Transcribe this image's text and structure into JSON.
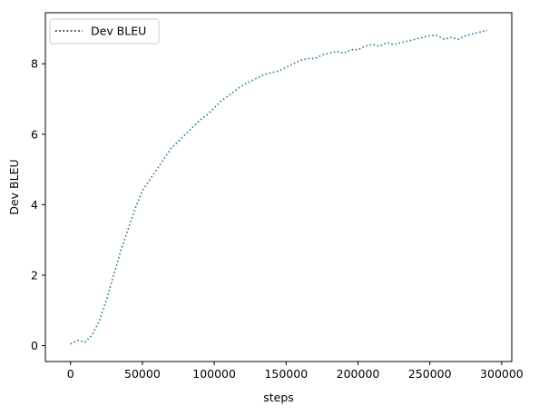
{
  "chart_data": {
    "type": "line",
    "xlabel": "steps",
    "ylabel": "Dev BLEU",
    "xlim": [
      -17500,
      307000
    ],
    "ylim": [
      -0.45,
      9.45
    ],
    "xticks": [
      0,
      50000,
      100000,
      150000,
      200000,
      250000,
      300000
    ],
    "xtick_labels": [
      "0",
      "50000",
      "100000",
      "150000",
      "200000",
      "250000",
      "300000"
    ],
    "yticks": [
      0,
      2,
      4,
      6,
      8
    ],
    "ytick_labels": [
      "0",
      "2",
      "4",
      "6",
      "8"
    ],
    "grid": false,
    "legend": {
      "placement": "top-left",
      "entries": [
        "Dev BLEU"
      ],
      "line_style": "dotted",
      "line_color": "#000000"
    },
    "series": [
      {
        "name": "Dev BLEU",
        "color": "#1f77b4",
        "line_style": "dotted",
        "x": [
          0,
          5000,
          10000,
          15000,
          20000,
          25000,
          30000,
          35000,
          40000,
          45000,
          50000,
          55000,
          60000,
          65000,
          70000,
          75000,
          80000,
          85000,
          90000,
          95000,
          100000,
          105000,
          110000,
          115000,
          120000,
          125000,
          130000,
          135000,
          140000,
          145000,
          150000,
          155000,
          160000,
          165000,
          170000,
          175000,
          180000,
          185000,
          190000,
          195000,
          200000,
          205000,
          210000,
          215000,
          220000,
          225000,
          230000,
          235000,
          240000,
          245000,
          250000,
          255000,
          260000,
          265000,
          270000,
          275000,
          280000,
          285000,
          290000
        ],
        "y": [
          0.05,
          0.15,
          0.1,
          0.3,
          0.7,
          1.3,
          2.0,
          2.7,
          3.3,
          3.9,
          4.4,
          4.7,
          5.0,
          5.3,
          5.6,
          5.8,
          6.0,
          6.2,
          6.4,
          6.55,
          6.75,
          6.95,
          7.1,
          7.25,
          7.4,
          7.5,
          7.6,
          7.7,
          7.75,
          7.8,
          7.9,
          8.0,
          8.1,
          8.15,
          8.15,
          8.25,
          8.3,
          8.35,
          8.3,
          8.4,
          8.4,
          8.5,
          8.55,
          8.5,
          8.6,
          8.55,
          8.6,
          8.65,
          8.7,
          8.75,
          8.8,
          8.8,
          8.7,
          8.75,
          8.7,
          8.8,
          8.85,
          8.9,
          8.95
        ]
      }
    ]
  }
}
